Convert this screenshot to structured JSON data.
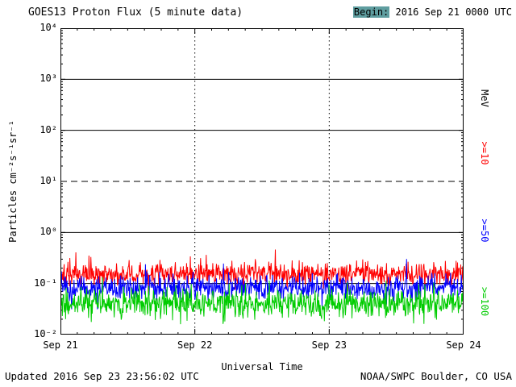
{
  "header": {
    "title": "GOES13 Proton Flux (5 minute data)",
    "begin_prefix": "Begin:",
    "begin_value": " 2016 Sep 21 0000 UTC",
    "begin_highlight_color": "#5f9ea0"
  },
  "footer": {
    "updated": "Updated 2016 Sep 23 23:56:02 UTC",
    "source": "NOAA/SWPC Boulder, CO USA"
  },
  "chart_data": {
    "type": "line",
    "title": "GOES13 Proton Flux (5 minute data)",
    "xlabel": "Universal Time",
    "ylabel": "Particles  cm⁻²s⁻¹sr⁻¹",
    "x_scale": "time",
    "y_scale": "log10",
    "x_range_days": 3,
    "points_per_day": 288,
    "n_points": 864,
    "x_tick_labels": [
      "Sep 21",
      "Sep 22",
      "Sep 23",
      "Sep 24"
    ],
    "y_tick_labels": [
      "10⁴",
      "10³",
      "10²",
      "10¹",
      "10⁰",
      "10⁻¹",
      "10⁻²"
    ],
    "y_tick_exponents": [
      4,
      3,
      2,
      1,
      0,
      -1,
      -2
    ],
    "ylim_exponents": [
      -2,
      4
    ],
    "gridlines": {
      "horizontal_solid_exponents": [
        3,
        2,
        0,
        -1
      ],
      "horizontal_dashed_exponents": [
        1
      ],
      "vertical_dotted_days": [
        1,
        2
      ]
    },
    "right_labels": [
      {
        "text": "MeV",
        "color": "#000000"
      },
      {
        "text": ">=10",
        "color": "#ff0000"
      },
      {
        "text": ">=50",
        "color": "#0000ff"
      },
      {
        "text": ">=100",
        "color": "#00cc00"
      }
    ],
    "legend_position": "right",
    "series": [
      {
        "name": ">=10 MeV",
        "color": "#ff0000",
        "baseline_flux": 0.155,
        "log_sigma": 0.115,
        "spike_prob": 0.025,
        "spike_mag": 0.38,
        "seed": 1013
      },
      {
        "name": ">=50 MeV",
        "color": "#0000ff",
        "baseline_flux": 0.082,
        "log_sigma": 0.125,
        "spike_prob": 0.015,
        "spike_mag": 0.28,
        "seed": 2029
      },
      {
        "name": ">=100 MeV",
        "color": "#00cc00",
        "baseline_flux": 0.041,
        "log_sigma": 0.145,
        "spike_prob": 0.012,
        "spike_mag": 0.22,
        "seed": 3041
      }
    ],
    "series_note": "Quiet-time background flux ~0.1-0.3 (>=10 MeV), ~0.05-0.15 (>=50 MeV), ~0.02-0.08 (>=100 MeV) particles cm-2 s-1 sr-1 over Sep 21-24 2016; no proton event, noise about baselines above"
  }
}
